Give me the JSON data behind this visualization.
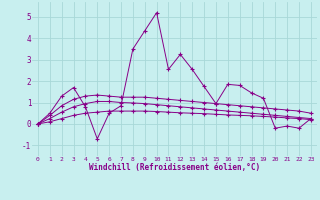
{
  "xlabel": "Windchill (Refroidissement éolien,°C)",
  "bg_color": "#c8efef",
  "grid_color": "#a8d8d8",
  "line_color": "#880088",
  "xlim": [
    -0.5,
    23.5
  ],
  "ylim": [
    -1.5,
    5.7
  ],
  "xticks": [
    0,
    1,
    2,
    3,
    4,
    5,
    6,
    7,
    8,
    9,
    10,
    11,
    12,
    13,
    14,
    15,
    16,
    17,
    18,
    19,
    20,
    21,
    22,
    23
  ],
  "yticks": [
    -1,
    0,
    1,
    2,
    3,
    4,
    5
  ],
  "series": [
    [
      0.0,
      0.5,
      1.3,
      1.7,
      0.8,
      -0.7,
      0.5,
      0.85,
      3.5,
      4.35,
      5.2,
      2.55,
      3.25,
      2.55,
      1.75,
      0.95,
      1.85,
      1.8,
      1.45,
      1.2,
      -0.2,
      -0.1,
      -0.2,
      0.25
    ],
    [
      0.0,
      0.4,
      0.85,
      1.15,
      1.3,
      1.35,
      1.3,
      1.25,
      1.25,
      1.25,
      1.2,
      1.15,
      1.1,
      1.05,
      1.0,
      0.95,
      0.9,
      0.85,
      0.8,
      0.75,
      0.7,
      0.65,
      0.6,
      0.5
    ],
    [
      0.0,
      0.25,
      0.55,
      0.8,
      0.95,
      1.05,
      1.05,
      1.0,
      0.98,
      0.95,
      0.9,
      0.85,
      0.8,
      0.75,
      0.7,
      0.65,
      0.6,
      0.55,
      0.5,
      0.45,
      0.4,
      0.35,
      0.3,
      0.25
    ],
    [
      0.0,
      0.1,
      0.25,
      0.4,
      0.5,
      0.55,
      0.6,
      0.6,
      0.6,
      0.6,
      0.58,
      0.55,
      0.52,
      0.5,
      0.48,
      0.45,
      0.42,
      0.4,
      0.38,
      0.35,
      0.32,
      0.28,
      0.25,
      0.2
    ]
  ]
}
